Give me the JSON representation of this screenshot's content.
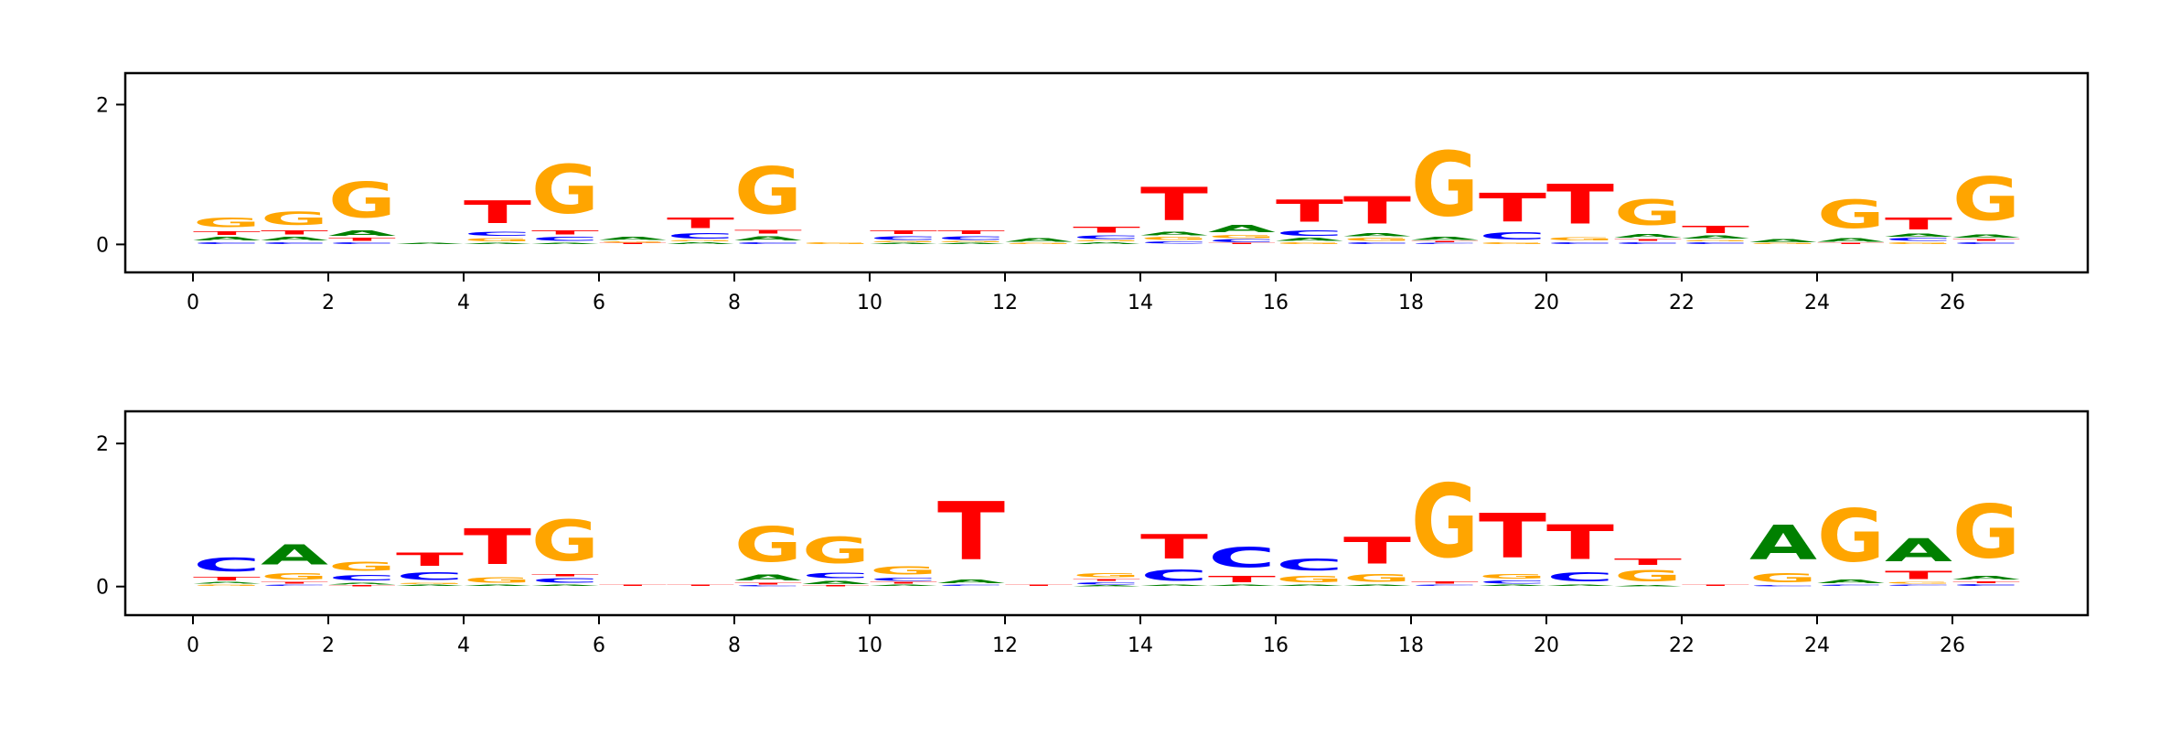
{
  "colors": {
    "A": "#008000",
    "C": "#0000ff",
    "G": "#ffa500",
    "T": "#ff0000"
  },
  "chart_data": [
    {
      "type": "sequence-logo",
      "title": "",
      "xlabel": "",
      "ylabel": "",
      "xlim": [
        -1,
        28
      ],
      "ylim": [
        -0.4,
        2.45
      ],
      "xticks": [
        0,
        2,
        4,
        6,
        8,
        10,
        12,
        14,
        16,
        18,
        20,
        22,
        24,
        26
      ],
      "yticks": [
        0,
        2
      ],
      "positions": [
        [
          [
            "C",
            0.04
          ],
          [
            "A",
            0.08
          ],
          [
            "T",
            0.08
          ],
          [
            "G",
            0.22
          ]
        ],
        [
          [
            "C",
            0.04
          ],
          [
            "A",
            0.08
          ],
          [
            "T",
            0.1
          ],
          [
            "G",
            0.3
          ]
        ],
        [
          [
            "C",
            0.04
          ],
          [
            "T",
            0.06
          ],
          [
            "A",
            0.12
          ],
          [
            "G",
            0.82
          ]
        ],
        [
          [
            "A",
            0.03
          ]
        ],
        [
          [
            "A",
            0.03
          ],
          [
            "G",
            0.07
          ],
          [
            "C",
            0.1
          ],
          [
            "T",
            0.52
          ]
        ],
        [
          [
            "A",
            0.03
          ],
          [
            "C",
            0.09
          ],
          [
            "T",
            0.1
          ],
          [
            "G",
            1.12
          ]
        ],
        [
          [
            "T",
            0.02
          ],
          [
            "G",
            0.03
          ],
          [
            "A",
            0.07
          ]
        ],
        [
          [
            "A",
            0.04
          ],
          [
            "G",
            0.02
          ],
          [
            "C",
            0.12
          ],
          [
            "T",
            0.25
          ]
        ],
        [
          [
            "C",
            0.04
          ],
          [
            "A",
            0.1
          ],
          [
            "T",
            0.08
          ],
          [
            "G",
            1.08
          ]
        ],
        [
          [
            "G",
            0.04
          ]
        ],
        [
          [
            "A",
            0.03
          ],
          [
            "G",
            0.02
          ],
          [
            "C",
            0.08
          ],
          [
            "T",
            0.08
          ]
        ],
        [
          [
            "A",
            0.03
          ],
          [
            "G",
            0.02
          ],
          [
            "C",
            0.08
          ],
          [
            "T",
            0.08
          ]
        ],
        [
          [
            "G",
            0.02
          ],
          [
            "A",
            0.08
          ]
        ],
        [
          [
            "A",
            0.04
          ],
          [
            "G",
            0.02
          ],
          [
            "C",
            0.08
          ],
          [
            "T",
            0.14
          ]
        ],
        [
          [
            "C",
            0.05
          ],
          [
            "G",
            0.06
          ],
          [
            "A",
            0.08
          ],
          [
            "T",
            0.76
          ]
        ],
        [
          [
            "T",
            0.02
          ],
          [
            "C",
            0.06
          ],
          [
            "G",
            0.06
          ],
          [
            "A",
            0.16
          ]
        ],
        [
          [
            "G",
            0.04
          ],
          [
            "A",
            0.06
          ],
          [
            "C",
            0.12
          ],
          [
            "T",
            0.51
          ]
        ],
        [
          [
            "C",
            0.04
          ],
          [
            "G",
            0.06
          ],
          [
            "A",
            0.07
          ],
          [
            "T",
            0.63
          ]
        ],
        [
          [
            "C",
            0.03
          ],
          [
            "T",
            0.02
          ],
          [
            "A",
            0.06
          ],
          [
            "G",
            1.49
          ]
        ],
        [
          [
            "G",
            0.04
          ],
          [
            "C",
            0.16
          ],
          [
            "T",
            0.65
          ]
        ],
        [
          [
            "C",
            0.04
          ],
          [
            "G",
            0.07
          ],
          [
            "T",
            0.92
          ]
        ],
        [
          [
            "C",
            0.04
          ],
          [
            "T",
            0.04
          ],
          [
            "A",
            0.08
          ],
          [
            "G",
            0.58
          ]
        ],
        [
          [
            "C",
            0.04
          ],
          [
            "G",
            0.03
          ],
          [
            "A",
            0.06
          ],
          [
            "T",
            0.16
          ]
        ],
        [
          [
            "G",
            0.02
          ],
          [
            "A",
            0.07
          ]
        ],
        [
          [
            "T",
            0.02
          ],
          [
            "A",
            0.08
          ],
          [
            "G",
            0.66
          ]
        ],
        [
          [
            "G",
            0.04
          ],
          [
            "C",
            0.06
          ],
          [
            "A",
            0.06
          ],
          [
            "T",
            0.27
          ]
        ],
        [
          [
            "C",
            0.04
          ],
          [
            "T",
            0.04
          ],
          [
            "A",
            0.07
          ],
          [
            "G",
            0.99
          ]
        ]
      ]
    },
    {
      "type": "sequence-logo",
      "title": "",
      "xlabel": "",
      "ylabel": "",
      "xlim": [
        -1,
        28
      ],
      "ylim": [
        -0.4,
        2.45
      ],
      "xticks": [
        0,
        2,
        4,
        6,
        8,
        10,
        12,
        14,
        16,
        18,
        20,
        22,
        24,
        26
      ],
      "yticks": [
        0,
        2
      ],
      "positions": [
        [
          [
            "G",
            0.03
          ],
          [
            "A",
            0.04
          ],
          [
            "T",
            0.08
          ],
          [
            "C",
            0.31
          ]
        ],
        [
          [
            "C",
            0.03
          ],
          [
            "T",
            0.04
          ],
          [
            "G",
            0.15
          ],
          [
            "A",
            0.45
          ]
        ],
        [
          [
            "T",
            0.02
          ],
          [
            "A",
            0.04
          ],
          [
            "C",
            0.12
          ],
          [
            "G",
            0.2
          ]
        ],
        [
          [
            "A",
            0.03
          ],
          [
            "G",
            0.03
          ],
          [
            "C",
            0.17
          ],
          [
            "T",
            0.29
          ]
        ],
        [
          [
            "A",
            0.03
          ],
          [
            "G",
            0.12
          ],
          [
            "T",
            0.8
          ]
        ],
        [
          [
            "A",
            0.03
          ],
          [
            "C",
            0.1
          ],
          [
            "T",
            0.05
          ],
          [
            "G",
            0.92
          ]
        ],
        [
          [
            "T",
            0.03
          ]
        ],
        [
          [
            "T",
            0.03
          ]
        ],
        [
          [
            "C",
            0.02
          ],
          [
            "T",
            0.04
          ],
          [
            "A",
            0.13
          ],
          [
            "G",
            0.78
          ]
        ],
        [
          [
            "T",
            0.02
          ],
          [
            "A",
            0.07
          ],
          [
            "C",
            0.12
          ],
          [
            "G",
            0.59
          ]
        ],
        [
          [
            "A",
            0.03
          ],
          [
            "T",
            0.04
          ],
          [
            "C",
            0.06
          ],
          [
            "G",
            0.19
          ]
        ],
        [
          [
            "C",
            0.03
          ],
          [
            "A",
            0.08
          ],
          [
            "T",
            1.31
          ]
        ],
        [
          [
            "T",
            0.03
          ]
        ],
        [
          [
            "A",
            0.02
          ],
          [
            "C",
            0.05
          ],
          [
            "T",
            0.04
          ],
          [
            "G",
            0.09
          ]
        ],
        [
          [
            "A",
            0.03
          ],
          [
            "C",
            0.25
          ],
          [
            "T",
            0.54
          ]
        ],
        [
          [
            "A",
            0.03
          ],
          [
            "T",
            0.15
          ],
          [
            "C",
            0.45
          ]
        ],
        [
          [
            "A",
            0.03
          ],
          [
            "G",
            0.14
          ],
          [
            "C",
            0.26
          ]
        ],
        [
          [
            "A",
            0.03
          ],
          [
            "G",
            0.17
          ],
          [
            "T",
            0.6
          ]
        ],
        [
          [
            "C",
            0.03
          ],
          [
            "T",
            0.05
          ],
          [
            "G",
            1.65
          ]
        ],
        [
          [
            "A",
            0.03
          ],
          [
            "C",
            0.06
          ],
          [
            "G",
            0.11
          ],
          [
            "T",
            1.0
          ]
        ],
        [
          [
            "A",
            0.03
          ],
          [
            "C",
            0.2
          ],
          [
            "T",
            0.77
          ]
        ],
        [
          [
            "A",
            0.02
          ],
          [
            "G",
            0.25
          ],
          [
            "T",
            0.15
          ]
        ],
        [
          [
            "T",
            0.03
          ]
        ],
        [
          [
            "C",
            0.02
          ],
          [
            "G",
            0.2
          ],
          [
            "A",
            0.77
          ]
        ],
        [
          [
            "C",
            0.03
          ],
          [
            "A",
            0.08
          ],
          [
            "G",
            1.18
          ]
        ],
        [
          [
            "C",
            0.03
          ],
          [
            "G",
            0.04
          ],
          [
            "T",
            0.18
          ],
          [
            "A",
            0.52
          ]
        ],
        [
          [
            "C",
            0.04
          ],
          [
            "T",
            0.04
          ],
          [
            "A",
            0.08
          ],
          [
            "G",
            1.2
          ]
        ]
      ]
    }
  ]
}
